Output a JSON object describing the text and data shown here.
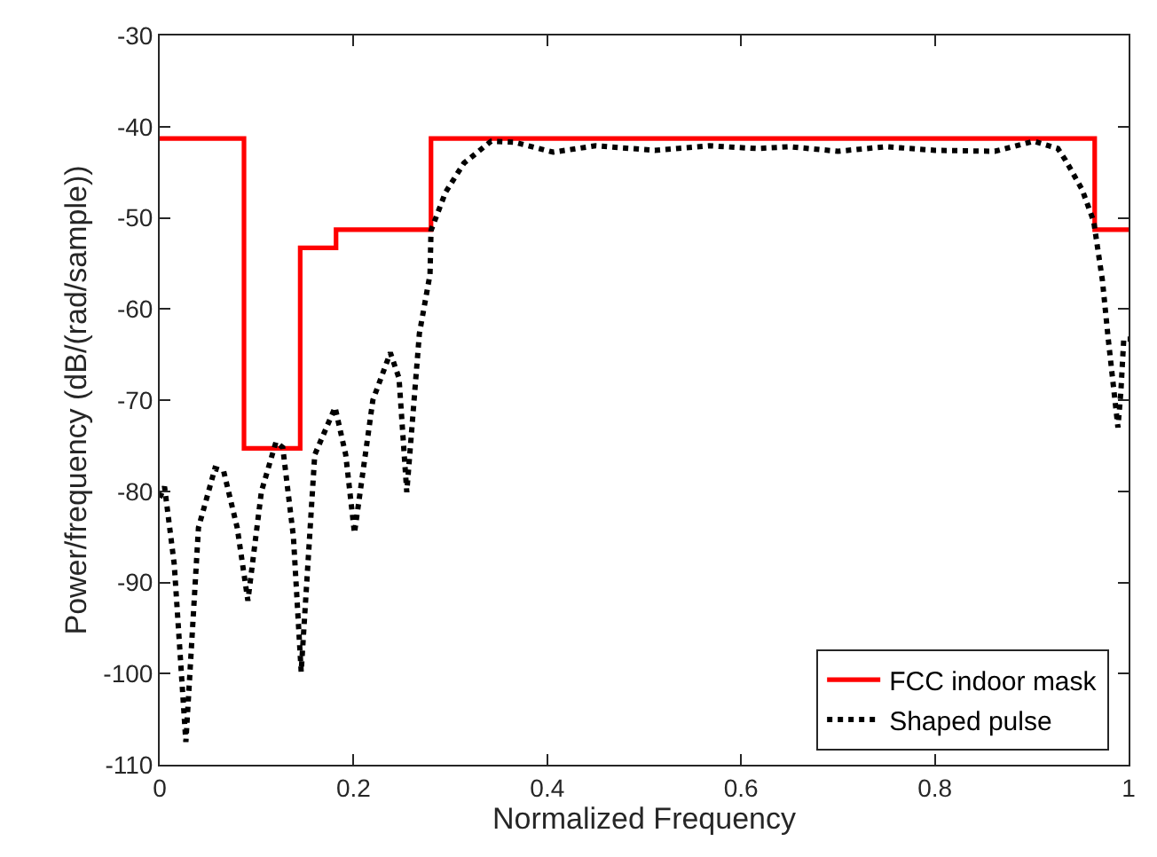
{
  "chart_data": {
    "type": "line",
    "xlabel": "Normalized Frequency",
    "ylabel": "Power/frequency (dB/(rad/sample))",
    "xlim": [
      0,
      1
    ],
    "xticks": [
      0,
      0.2,
      0.4,
      0.6,
      0.8,
      1
    ],
    "ylim": [
      -110,
      -30
    ],
    "yticks": [
      -110,
      -100,
      -90,
      -80,
      -70,
      -60,
      -50,
      -40,
      -30
    ],
    "grid": false,
    "legend": "bottom right",
    "marker": "none",
    "series": [
      {
        "name": "FCC indoor mask",
        "color": "#ff0000",
        "type": "step",
        "line_style": "solid",
        "x": [
          0,
          0.087,
          0.145,
          0.182,
          0.28,
          0.965,
          1
        ],
        "values": [
          -41.3,
          -75.3,
          -53.3,
          -51.3,
          -41.3,
          -51.3,
          -51.3
        ]
      },
      {
        "name": "Shaped pulse",
        "color": "#000000",
        "line_style": "dotted",
        "x": [
          0,
          0.005,
          0.015,
          0.027,
          0.04,
          0.057,
          0.066,
          0.08,
          0.091,
          0.105,
          0.12,
          0.127,
          0.138,
          0.146,
          0.16,
          0.181,
          0.192,
          0.201,
          0.22,
          0.238,
          0.247,
          0.255,
          0.268,
          0.279,
          0.28,
          0.295,
          0.314,
          0.342,
          0.366,
          0.406,
          0.45,
          0.511,
          0.567,
          0.616,
          0.65,
          0.7,
          0.75,
          0.8,
          0.862,
          0.902,
          0.927,
          0.935,
          0.952,
          0.964,
          0.973,
          0.979,
          0.989,
          0.992,
          0.995,
          1
        ],
        "values": [
          -80.7,
          -79.5,
          -88,
          -107.5,
          -84,
          -77.5,
          -77.8,
          -84,
          -92.0,
          -80,
          -74.6,
          -75.2,
          -85,
          -99.8,
          -76,
          -70.8,
          -76,
          -84.6,
          -70,
          -64.8,
          -67.6,
          -80.1,
          -62.7,
          -56.2,
          -51.4,
          -47.2,
          -44.0,
          -41.6,
          -41.7,
          -42.8,
          -42.1,
          -42.6,
          -42.1,
          -42.4,
          -42.2,
          -42.7,
          -42.2,
          -42.6,
          -42.7,
          -41.6,
          -42.4,
          -43.7,
          -46.9,
          -50.4,
          -56.9,
          -63.3,
          -73.0,
          -69.1,
          -63.3,
          -63.3
        ]
      }
    ]
  }
}
